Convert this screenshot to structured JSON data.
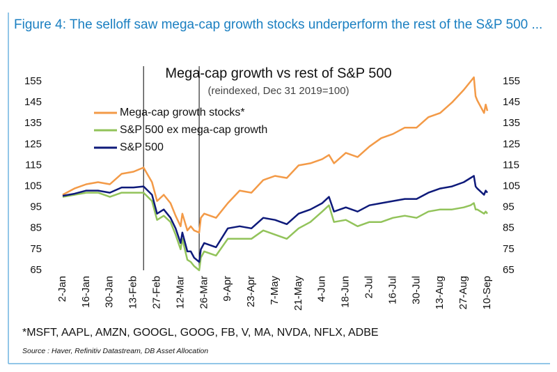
{
  "figure_title": "Figure 4: The selloff saw mega-cap growth stocks underperform the rest of the S&P 500 ...",
  "footnote": "*MSFT, AAPL, AMZN, GOOGL, GOOG, FB, V, MA, NVDA, NFLX, ADBE",
  "source": "Source : Haver, Refinitiv Datastream, DB Asset Allocation",
  "chart_data": {
    "type": "line",
    "title": "Mega-cap growth vs rest of S&P 500",
    "subtitle": "(reindexed, Dec 31 2019=100)",
    "x": [
      "2-Jan",
      "9-Jan",
      "16-Jan",
      "23-Jan",
      "30-Jan",
      "6-Feb",
      "13-Feb",
      "19-Feb",
      "24-Feb",
      "27-Feb",
      "2-Mar",
      "6-Mar",
      "9-Mar",
      "12-Mar",
      "13-Mar",
      "16-Mar",
      "18-Mar",
      "20-Mar",
      "23-Mar",
      "24-Mar",
      "26-Mar",
      "2-Apr",
      "9-Apr",
      "16-Apr",
      "23-Apr",
      "30-Apr",
      "7-May",
      "14-May",
      "21-May",
      "28-May",
      "4-Jun",
      "8-Jun",
      "11-Jun",
      "18-Jun",
      "25-Jun",
      "2-Jul",
      "9-Jul",
      "16-Jul",
      "23-Jul",
      "30-Jul",
      "6-Aug",
      "13-Aug",
      "20-Aug",
      "27-Aug",
      "31-Aug",
      "2-Sep",
      "3-Sep",
      "4-Sep",
      "8-Sep",
      "9-Sep",
      "10-Sep"
    ],
    "series": [
      {
        "name": "Mega-cap growth stocks*",
        "color": "#f39a47",
        "values": [
          101,
          104,
          106,
          107,
          106,
          111,
          112,
          114,
          107,
          98,
          101,
          97,
          91,
          86,
          92,
          84,
          86,
          84,
          83,
          90,
          92,
          90,
          97,
          103,
          102,
          108,
          110,
          109,
          115,
          116,
          118,
          120,
          116,
          121,
          119,
          124,
          128,
          130,
          133,
          133,
          138,
          140,
          145,
          151,
          155,
          157,
          148,
          146,
          140,
          144,
          141
        ]
      },
      {
        "name": "S&P 500 ex mega-cap growth",
        "color": "#92c35a",
        "values": [
          100,
          101,
          102,
          102,
          100,
          102,
          102,
          102,
          98,
          89,
          91,
          88,
          82,
          75,
          80,
          70,
          69,
          67,
          65,
          71,
          74,
          72,
          80,
          80,
          80,
          84,
          82,
          80,
          85,
          88,
          93,
          96,
          88,
          89,
          86,
          88,
          88,
          90,
          91,
          90,
          93,
          94,
          94,
          95,
          96,
          97,
          94,
          94,
          92,
          93,
          92
        ]
      },
      {
        "name": "S&P 500",
        "color": "#0e1a7a",
        "values": [
          100.5,
          101.5,
          103,
          103,
          102,
          104.5,
          104.5,
          105,
          101,
          92,
          94,
          90,
          85,
          78,
          83,
          74,
          74,
          71,
          69,
          75,
          78,
          76,
          85,
          86,
          85,
          90,
          89,
          87,
          92,
          94,
          97,
          100,
          93,
          95,
          93,
          96,
          97,
          98,
          99,
          99,
          102,
          104,
          105,
          107,
          109,
          110,
          105,
          104,
          101,
          103,
          102
        ]
      }
    ],
    "xticks": [
      "2-Jan",
      "16-Jan",
      "30-Jan",
      "13-Feb",
      "27-Feb",
      "12-Mar",
      "26-Mar",
      "9-Apr",
      "23-Apr",
      "7-May",
      "21-May",
      "4-Jun",
      "18-Jun",
      "2-Jul",
      "16-Jul",
      "30-Jul",
      "13-Aug",
      "27-Aug",
      "10-Sep"
    ],
    "vlines": [
      "19-Feb",
      "23-Mar"
    ],
    "ylim": [
      65,
      155
    ],
    "yticks": [
      65,
      75,
      85,
      95,
      105,
      115,
      125,
      135,
      145,
      155
    ],
    "y2lim": [
      65,
      155
    ],
    "y2ticks": [
      65,
      75,
      85,
      95,
      105,
      115,
      125,
      135,
      145,
      155
    ],
    "grid": false,
    "legend": "upper left"
  }
}
